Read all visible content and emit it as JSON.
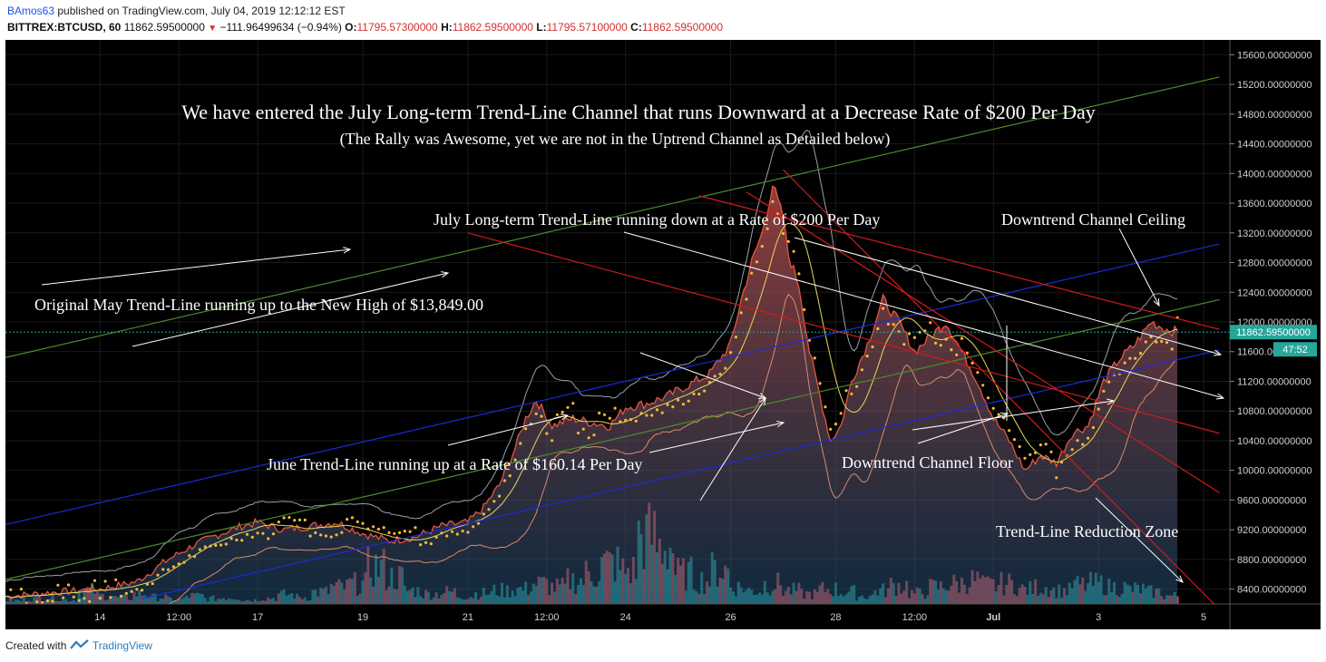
{
  "header": {
    "author": "BAmos63",
    "published_text": "published on TradingView.com, July 04, 2019 12:12:12 EST",
    "symbol": "BITTREX:BTCUSD, 60",
    "last_price": "11862.59500000",
    "change": "−111.96499634 (−0.94%)",
    "open_label": "O:",
    "open": "11795.57300000",
    "high_label": "H:",
    "high": "11862.59500000",
    "low_label": "L:",
    "low": "11795.57100000",
    "close_label": "C:",
    "close": "11862.59500000"
  },
  "footer": {
    "created_with": "Created with",
    "brand": "TradingView"
  },
  "colors": {
    "background": "#000000",
    "candle_down": "#d9534f",
    "vol_up": "#26a69a",
    "vol_down": "#ef5350",
    "price_tag": "#26a69a",
    "sar": "#f5b83c"
  },
  "chart_data": {
    "type": "line",
    "ylim": [
      8200,
      15800
    ],
    "y_ticks": [
      "15600.00000000",
      "15200.00000000",
      "14800.00000000",
      "14400.00000000",
      "14000.00000000",
      "13600.00000000",
      "13200.00000000",
      "12800.00000000",
      "12400.00000000",
      "12000.00000000",
      "11600.00000000",
      "11200.00000000",
      "10800.00000000",
      "10400.00000000",
      "10000.00000000",
      "9600.00000000",
      "9200.00000000",
      "8800.00000000",
      "8400.00000000"
    ],
    "y_tick_values": [
      15600,
      15200,
      14800,
      14400,
      14000,
      13600,
      13200,
      12800,
      12400,
      12000,
      11600,
      11200,
      10800,
      10400,
      10000,
      9600,
      9200,
      8800,
      8400
    ],
    "x_ticks": [
      "14",
      "12:00",
      "17",
      "19",
      "21",
      "12:00",
      "24",
      "26",
      "28",
      "12:00",
      "Jul",
      "3",
      "5"
    ],
    "x_tick_days": [
      14,
      15.5,
      17,
      19,
      21,
      22.5,
      24,
      26,
      28,
      29.5,
      31,
      33,
      35
    ],
    "xlim": [
      12.2,
      35.5
    ],
    "last_price_tag": "11862.59500000",
    "countdown_tag": "47:52",
    "price_series": {
      "day": [
        12.2,
        13,
        14,
        14.7,
        15.3,
        15.8,
        16.3,
        16.7,
        17,
        17.5,
        18,
        18.5,
        19,
        19.5,
        20,
        20.5,
        21,
        21.3,
        21.6,
        21.9,
        22.1,
        22.3,
        22.6,
        23,
        23.3,
        23.7,
        24,
        24.4,
        24.8,
        25.2,
        25.6,
        26,
        26.2,
        26.4,
        26.6,
        26.8,
        27,
        27.1,
        27.3,
        27.5,
        27.7,
        27.9,
        28.1,
        28.3,
        28.6,
        28.9,
        29.2,
        29.5,
        29.8,
        30.1,
        30.4,
        30.7,
        31,
        31.3,
        31.6,
        31.9,
        32.2,
        32.5,
        32.8,
        33.1,
        33.4,
        33.7,
        34,
        34.3,
        34.5
      ],
      "close": [
        8300,
        8350,
        8400,
        8500,
        8800,
        9000,
        9150,
        9250,
        9300,
        9200,
        9250,
        9300,
        9150,
        9050,
        9100,
        9250,
        9300,
        9500,
        9800,
        10300,
        10700,
        10950,
        10600,
        10700,
        10650,
        10600,
        10850,
        10900,
        11000,
        11150,
        11300,
        11700,
        12300,
        12800,
        13200,
        13849,
        13400,
        12900,
        12500,
        11600,
        11000,
        10400,
        10600,
        11200,
        11700,
        12300,
        12000,
        11600,
        11800,
        12000,
        11600,
        11200,
        10700,
        10400,
        10000,
        10200,
        10100,
        10500,
        10600,
        11200,
        11500,
        11700,
        12000,
        11900,
        11862
      ]
    },
    "volume_relative": [
      0.05,
      0.08,
      0.1,
      0.06,
      0.2,
      0.12,
      0.09,
      0.15,
      0.1,
      0.07,
      0.12,
      0.08,
      0.1,
      0.06,
      0.09,
      0.14,
      0.1,
      0.18,
      0.25,
      0.3,
      0.55,
      0.4,
      0.2,
      0.15,
      0.18,
      0.12,
      0.16,
      0.2,
      0.22,
      0.3,
      0.25,
      0.35,
      0.45,
      0.6,
      0.5,
      1.0,
      0.85,
      0.45,
      0.35,
      0.5,
      0.25,
      0.2,
      0.3,
      0.2,
      0.15,
      0.22,
      0.18,
      0.12,
      0.2,
      0.28,
      0.16,
      0.25,
      0.3,
      0.35,
      0.28,
      0.3,
      0.22,
      0.25,
      0.2,
      0.28,
      0.3,
      0.25,
      0.22,
      0.18,
      0.12
    ],
    "trendlines": {
      "green_upper": [
        [
          12.2,
          11520
        ],
        [
          35.3,
          15300
        ]
      ],
      "green_lower": [
        [
          12.2,
          8530
        ],
        [
          35.3,
          12300
        ]
      ],
      "blue_upper": [
        [
          12.2,
          9270
        ],
        [
          35.3,
          13050
        ]
      ],
      "blue_lower": [
        [
          14.8,
          8270
        ],
        [
          35.3,
          11620
        ]
      ],
      "red_lines": [
        [
          [
            25.4,
            13700
          ],
          [
            35.3,
            11900
          ]
        ],
        [
          [
            21.0,
            13200
          ],
          [
            35.3,
            10500
          ]
        ],
        [
          [
            27.0,
            14050
          ],
          [
            35.2,
            8200
          ]
        ],
        [
          [
            26.3,
            13750
          ],
          [
            35.3,
            9700
          ]
        ]
      ]
    },
    "annotations": [
      {
        "id": "main_title",
        "text": "We have entered the July Long-term Trend-Line Channel that runs Downward at a Decrease Rate of $200 Per Day"
      },
      {
        "id": "subtitle",
        "text": "(The Rally was Awesome, yet we are not in the Uptrend Channel as Detailed below)"
      },
      {
        "id": "july_label",
        "text": "July Long-term Trend-Line running down at a Rate of $200 Per Day"
      },
      {
        "id": "ceiling_label",
        "text": "Downtrend Channel Ceiling"
      },
      {
        "id": "may_label",
        "text": "Original May Trend-Line running up to the New High of $13,849.00"
      },
      {
        "id": "june_label",
        "text": "June Trend-Line running up at a Rate of $160.14 Per Day"
      },
      {
        "id": "floor_label",
        "text": "Downtrend Channel Floor"
      },
      {
        "id": "reduction_label",
        "text": "Trend-Line Reduction Zone"
      }
    ]
  }
}
